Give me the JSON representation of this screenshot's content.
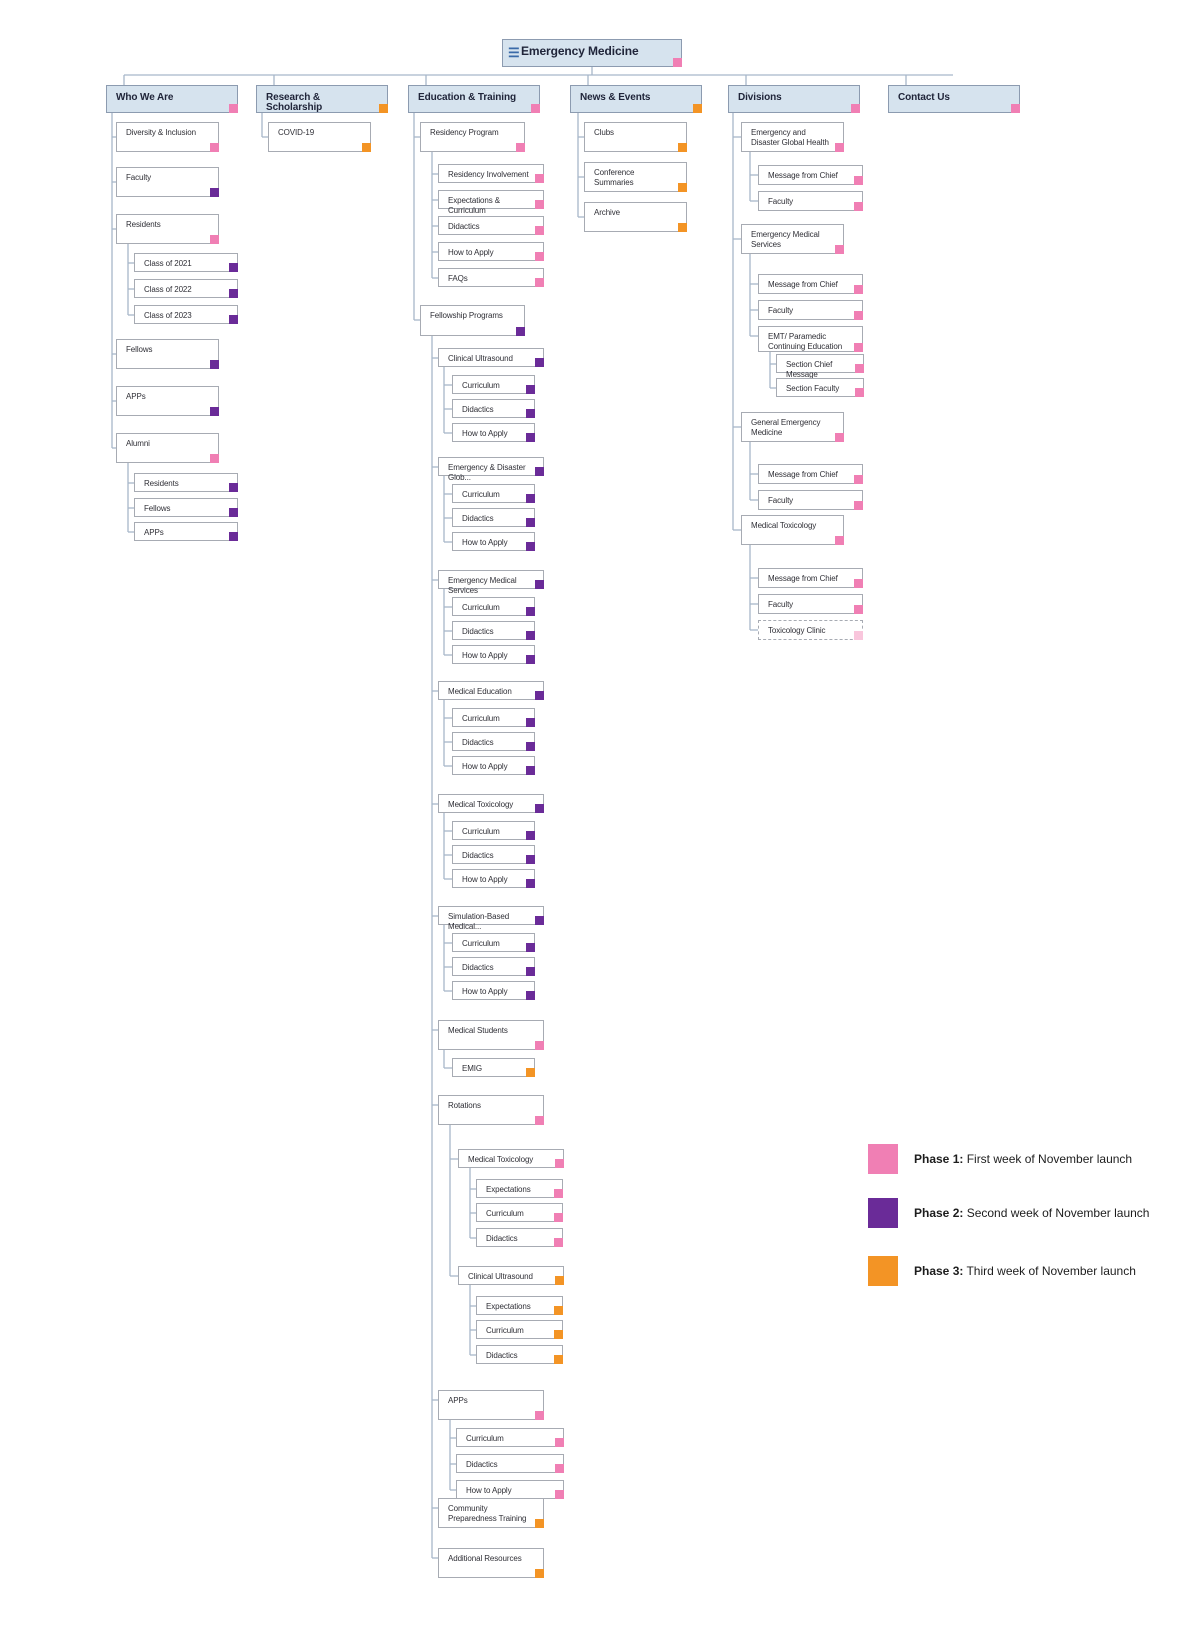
{
  "root": {
    "label": "Emergency Medicine",
    "phase": 1
  },
  "sections": [
    {
      "label": "Who We Are",
      "phase": 1,
      "children": [
        {
          "label": "Diversity & Inclusion",
          "phase": 1
        },
        {
          "label": "Faculty",
          "phase": 2
        },
        {
          "label": "Residents",
          "phase": 1,
          "children": [
            {
              "label": "Class of 2021",
              "phase": 2
            },
            {
              "label": "Class of 2022",
              "phase": 2
            },
            {
              "label": "Class of 2023",
              "phase": 2
            }
          ]
        },
        {
          "label": "Fellows",
          "phase": 2
        },
        {
          "label": "APPs",
          "phase": 2
        },
        {
          "label": "Alumni",
          "phase": 1,
          "children": [
            {
              "label": "Residents",
              "phase": 2
            },
            {
              "label": "Fellows",
              "phase": 2
            },
            {
              "label": "APPs",
              "phase": 2
            }
          ]
        }
      ]
    },
    {
      "label": "Research & Scholarship",
      "phase": 3,
      "children": [
        {
          "label": "COVID-19",
          "phase": 3
        }
      ]
    },
    {
      "label": "Education & Training",
      "phase": 1,
      "children": [
        {
          "label": "Residency Program",
          "phase": 1,
          "children": [
            {
              "label": "Residency Involvement",
              "phase": 1
            },
            {
              "label": "Expectations & Curriculum",
              "phase": 1
            },
            {
              "label": "Didactics",
              "phase": 1
            },
            {
              "label": "How to Apply",
              "phase": 1
            },
            {
              "label": "FAQs",
              "phase": 1
            }
          ]
        },
        {
          "label": "Fellowship Programs",
          "phase": 2,
          "children": [
            {
              "label": "Clinical Ultrasound",
              "phase": 2,
              "children": [
                {
                  "label": "Curriculum",
                  "phase": 2
                },
                {
                  "label": "Didactics",
                  "phase": 2
                },
                {
                  "label": "How to Apply",
                  "phase": 2
                }
              ]
            },
            {
              "label": "Emergency & Disaster Glob...",
              "phase": 2,
              "children": [
                {
                  "label": "Curriculum",
                  "phase": 2
                },
                {
                  "label": "Didactics",
                  "phase": 2
                },
                {
                  "label": "How to Apply",
                  "phase": 2
                }
              ]
            },
            {
              "label": "Emergency Medical Services",
              "phase": 2,
              "children": [
                {
                  "label": "Curriculum",
                  "phase": 2
                },
                {
                  "label": "Didactics",
                  "phase": 2
                },
                {
                  "label": "How to Apply",
                  "phase": 2
                }
              ]
            },
            {
              "label": "Medical Education",
              "phase": 2,
              "children": [
                {
                  "label": "Curriculum",
                  "phase": 2
                },
                {
                  "label": "Didactics",
                  "phase": 2
                },
                {
                  "label": "How to Apply",
                  "phase": 2
                }
              ]
            },
            {
              "label": "Medical Toxicology",
              "phase": 2,
              "children": [
                {
                  "label": "Curriculum",
                  "phase": 2
                },
                {
                  "label": "Didactics",
                  "phase": 2
                },
                {
                  "label": "How to Apply",
                  "phase": 2
                }
              ]
            },
            {
              "label": "Simulation-Based Medical...",
              "phase": 2,
              "children": [
                {
                  "label": "Curriculum",
                  "phase": 2
                },
                {
                  "label": "Didactics",
                  "phase": 2
                },
                {
                  "label": "How to Apply",
                  "phase": 2
                }
              ]
            },
            {
              "label": "Medical Students",
              "phase": 1,
              "children": [
                {
                  "label": "EMIG",
                  "phase": 3
                }
              ]
            },
            {
              "label": "Rotations",
              "phase": 1,
              "children": [
                {
                  "label": "Medical Toxicology",
                  "phase": 1,
                  "children": [
                    {
                      "label": "Expectations",
                      "phase": 1
                    },
                    {
                      "label": "Curriculum",
                      "phase": 1
                    },
                    {
                      "label": "Didactics",
                      "phase": 1
                    }
                  ]
                },
                {
                  "label": "Clinical Ultrasound",
                  "phase": 3,
                  "children": [
                    {
                      "label": "Expectations",
                      "phase": 3
                    },
                    {
                      "label": "Curriculum",
                      "phase": 3
                    },
                    {
                      "label": "Didactics",
                      "phase": 3
                    }
                  ]
                }
              ]
            },
            {
              "label": "APPs",
              "phase": 1,
              "children": [
                {
                  "label": "Curriculum",
                  "phase": 1
                },
                {
                  "label": "Didactics",
                  "phase": 1
                },
                {
                  "label": "How to Apply",
                  "phase": 1
                }
              ]
            },
            {
              "label": "Community Preparedness Training",
              "phase": 3
            },
            {
              "label": "Additional Resources",
              "phase": 3
            }
          ]
        }
      ]
    },
    {
      "label": "News & Events",
      "phase": 3,
      "children": [
        {
          "label": "Clubs",
          "phase": 3
        },
        {
          "label": "Conference Summaries",
          "phase": 3
        },
        {
          "label": "Archive",
          "phase": 3
        }
      ]
    },
    {
      "label": "Divisions",
      "phase": 1,
      "children": [
        {
          "label": "Emergency and Disaster Global Health",
          "phase": 1,
          "children": [
            {
              "label": "Message from Chief",
              "phase": 1
            },
            {
              "label": "Faculty",
              "phase": 1
            }
          ]
        },
        {
          "label": "Emergency Medical Services",
          "phase": 1,
          "children": [
            {
              "label": "Message from Chief",
              "phase": 1
            },
            {
              "label": "Faculty",
              "phase": 1
            },
            {
              "label": "EMT/ Paramedic Continuing Education",
              "phase": 1,
              "children": [
                {
                  "label": "Section Chief Message",
                  "phase": 1
                },
                {
                  "label": "Section Faculty",
                  "phase": 1
                }
              ]
            }
          ]
        },
        {
          "label": "General Emergency Medicine",
          "phase": 1,
          "children": [
            {
              "label": "Message from Chief",
              "phase": 1
            },
            {
              "label": "Faculty",
              "phase": 1
            }
          ]
        },
        {
          "label": "Medical Toxicology",
          "phase": 1,
          "children": [
            {
              "label": "Message from Chief",
              "phase": 1
            },
            {
              "label": "Faculty",
              "phase": 1
            },
            {
              "label": "Toxicology Clinic",
              "phase": 1,
              "tentative": true
            }
          ]
        }
      ]
    },
    {
      "label": "Contact Us",
      "phase": 1,
      "children": []
    }
  ],
  "legend": [
    {
      "title": "Phase 1:",
      "text": " First week of November launch",
      "color": "#f07fb4"
    },
    {
      "title": "Phase 2:",
      "text": " Second week of November launch",
      "color": "#6a2b98"
    },
    {
      "title": "Phase 3:",
      "text": " Third week of November launch",
      "color": "#f39425"
    }
  ],
  "colors": {
    "phase1": "#f07fb4",
    "phase2": "#6a2b98",
    "phase3": "#f39425",
    "line": "#a7b7c9"
  }
}
